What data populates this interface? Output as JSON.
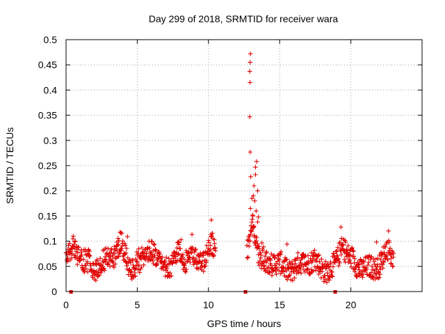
{
  "chart_data": {
    "type": "scatter",
    "title": "Day 299 of 2018, SRMTID for receiver wara",
    "xlabel": "GPS time / hours",
    "ylabel": "SRMTID / TECUs",
    "xlim": [
      0,
      25
    ],
    "ylim": [
      0,
      0.5
    ],
    "x_ticks": [
      0,
      5,
      10,
      15,
      20
    ],
    "x_tick_labels": [
      "0",
      "5",
      "10",
      "15",
      "20"
    ],
    "y_ticks": [
      0,
      0.05,
      0.1,
      0.15,
      0.2,
      0.25,
      0.3,
      0.35,
      0.4,
      0.45,
      0.5
    ],
    "y_tick_labels": [
      "0",
      "0.05",
      "0.1",
      "0.15",
      "0.2",
      "0.25",
      "0.3",
      "0.35",
      "0.4",
      "0.45",
      "0.5"
    ],
    "grid": true,
    "marker": "plus",
    "color": "#e00000",
    "series": [
      {
        "name": "SRMTID",
        "segments": [
          {
            "x_start": 0.0,
            "x_end": 10.5,
            "baseline": 0.058,
            "spread": 0.045,
            "bumps": [
              {
                "x": 0.5,
                "amp": 0.02
              },
              {
                "x": 3.8,
                "amp": 0.03
              },
              {
                "x": 5.8,
                "amp": 0.025
              },
              {
                "x": 7.9,
                "amp": 0.02
              },
              {
                "x": 10.2,
                "amp": 0.04
              }
            ]
          },
          {
            "x_start": 12.7,
            "x_end": 23.0,
            "baseline": 0.052,
            "spread": 0.045,
            "bumps": [
              {
                "x": 13.1,
                "amp": 0.09
              },
              {
                "x": 19.4,
                "amp": 0.035
              },
              {
                "x": 22.6,
                "amp": 0.02
              }
            ]
          }
        ],
        "peaks": [
          {
            "x": 12.95,
            "y": 0.472
          },
          {
            "x": 12.93,
            "y": 0.455
          },
          {
            "x": 12.9,
            "y": 0.437
          },
          {
            "x": 12.92,
            "y": 0.415
          },
          {
            "x": 12.9,
            "y": 0.347
          },
          {
            "x": 12.93,
            "y": 0.277
          },
          {
            "x": 13.38,
            "y": 0.258
          },
          {
            "x": 13.3,
            "y": 0.247
          },
          {
            "x": 12.97,
            "y": 0.228
          },
          {
            "x": 13.3,
            "y": 0.232
          },
          {
            "x": 13.2,
            "y": 0.21
          },
          {
            "x": 13.45,
            "y": 0.2
          },
          {
            "x": 13.15,
            "y": 0.19
          },
          {
            "x": 13.05,
            "y": 0.185
          },
          {
            "x": 13.25,
            "y": 0.18
          },
          {
            "x": 12.95,
            "y": 0.165
          },
          {
            "x": 13.35,
            "y": 0.16
          },
          {
            "x": 13.1,
            "y": 0.152
          },
          {
            "x": 13.5,
            "y": 0.148
          },
          {
            "x": 13.45,
            "y": 0.138
          },
          {
            "x": 13.2,
            "y": 0.13
          },
          {
            "x": 19.3,
            "y": 0.128
          },
          {
            "x": 21.8,
            "y": 0.098
          },
          {
            "x": 10.2,
            "y": 0.142
          },
          {
            "x": 3.8,
            "y": 0.118
          }
        ]
      }
    ],
    "baseline_markers": [
      0.35,
      12.6,
      18.9
    ]
  }
}
